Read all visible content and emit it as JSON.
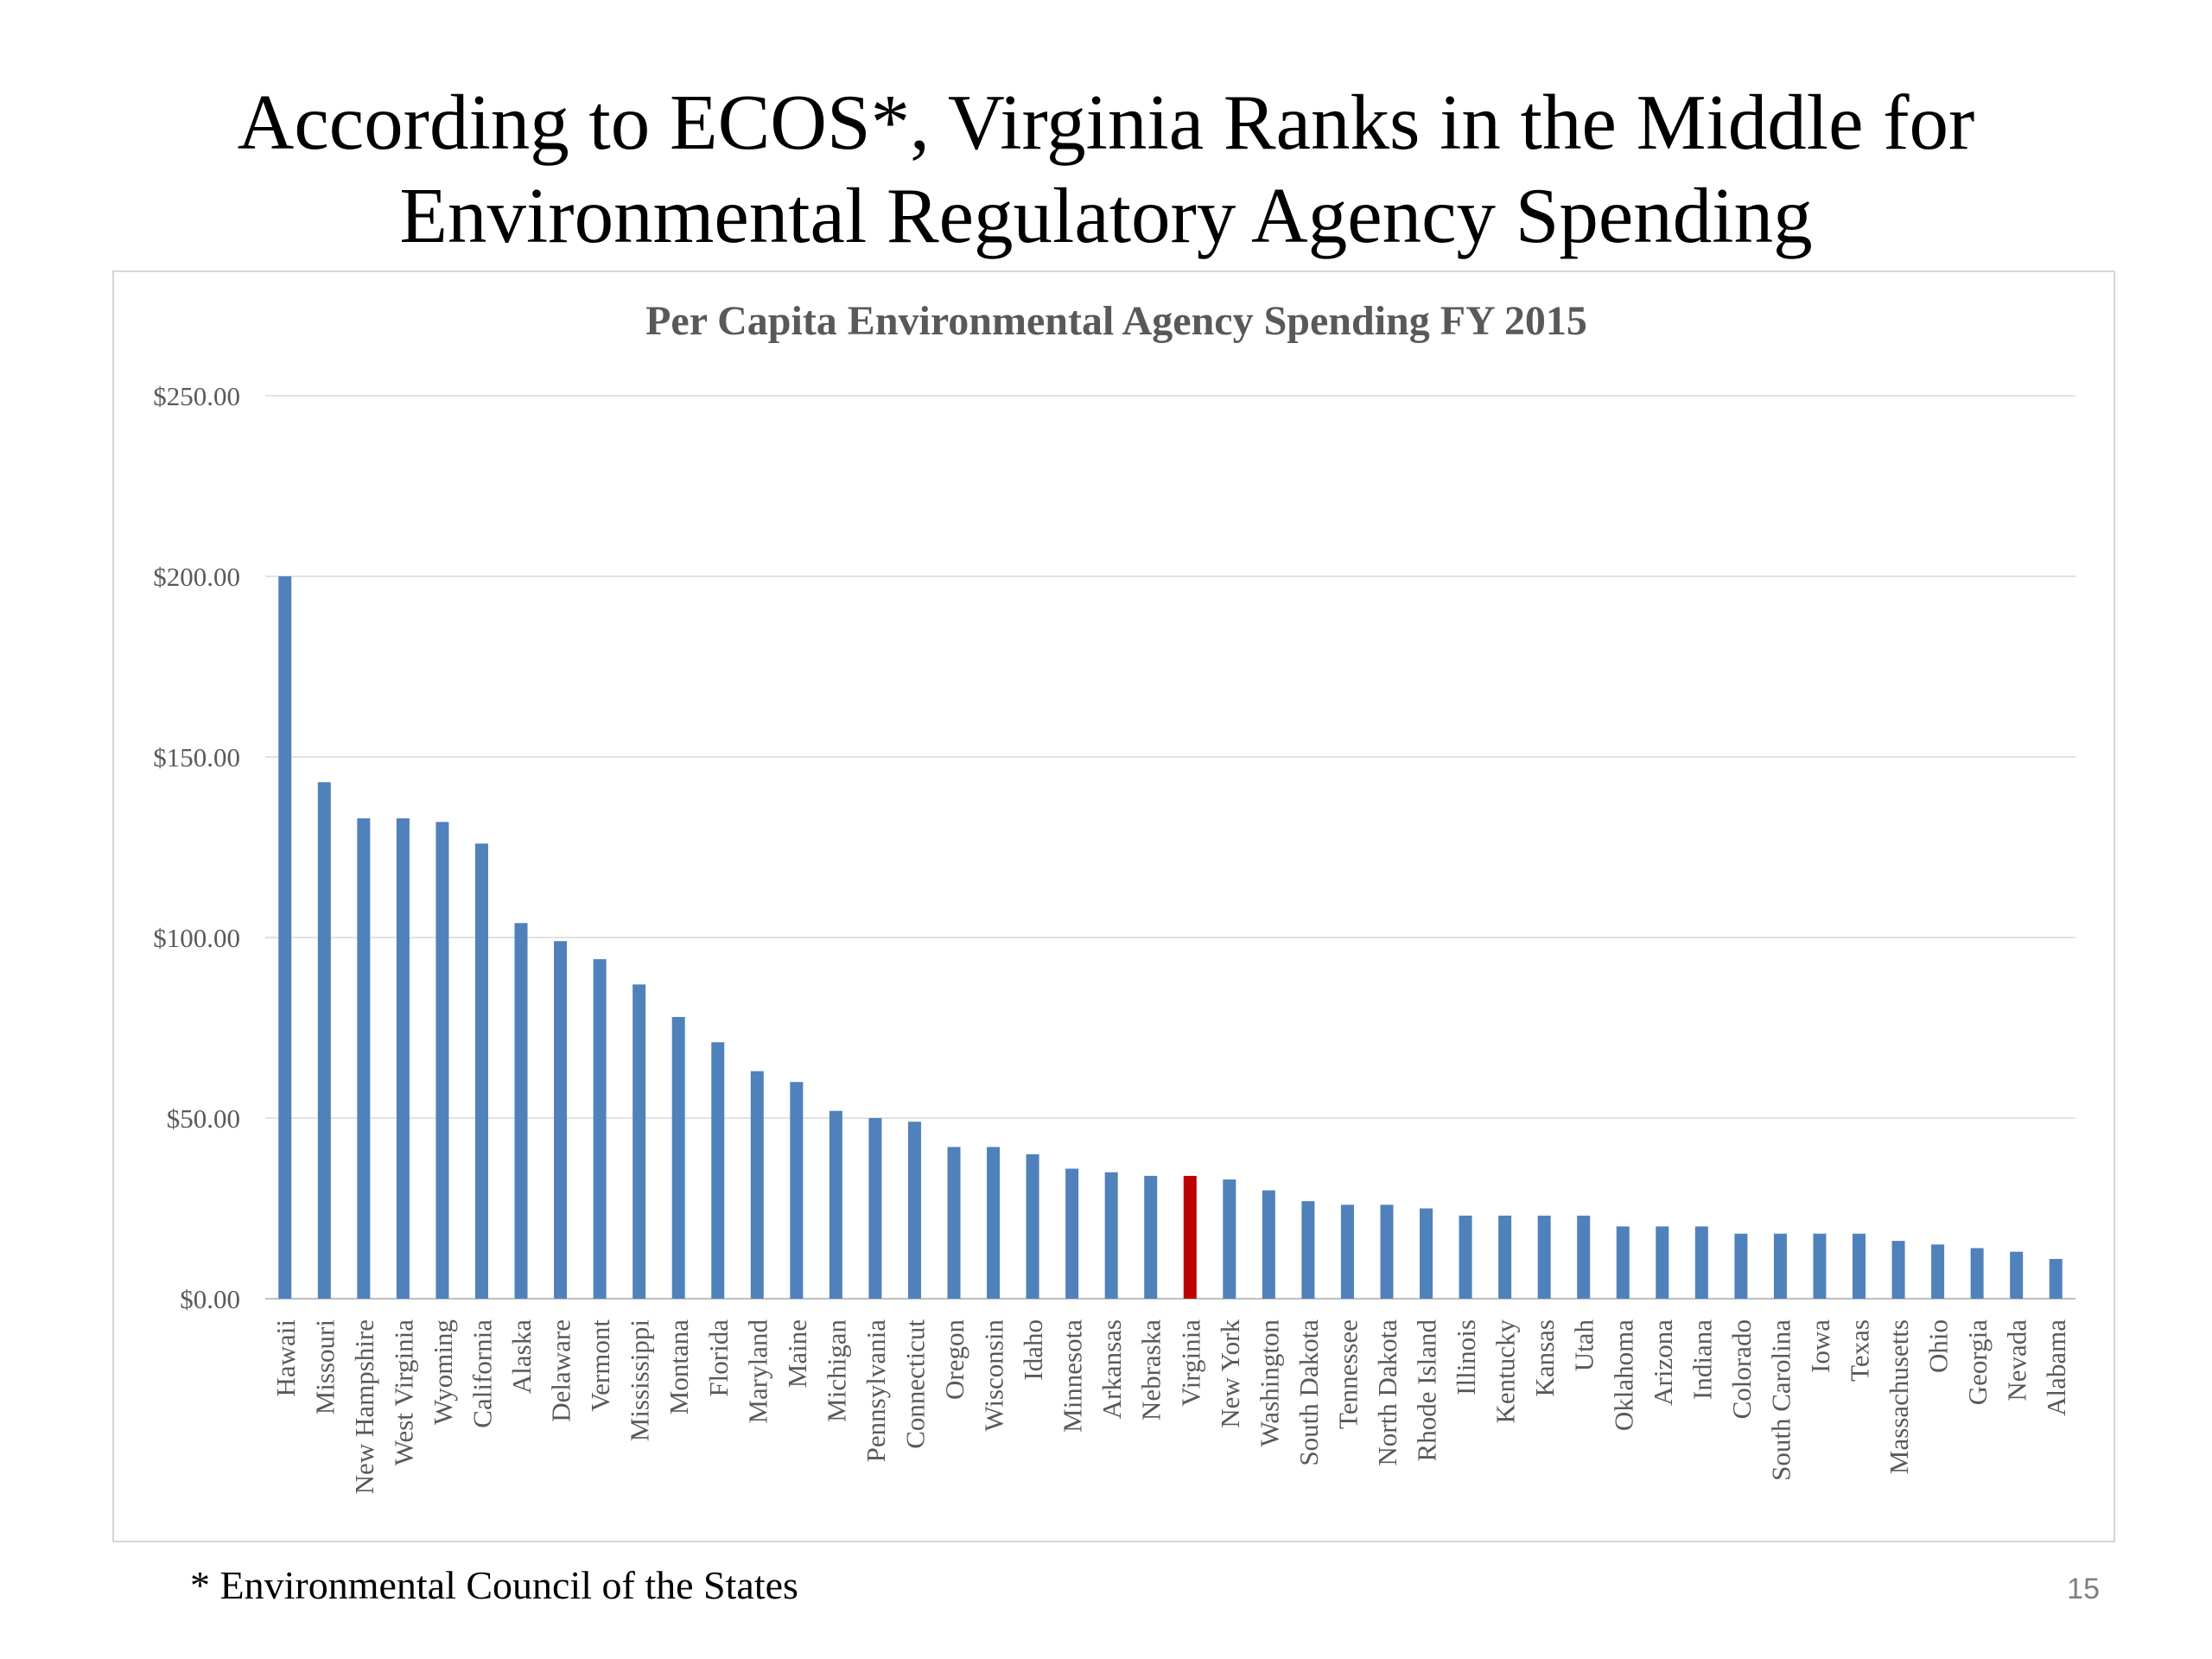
{
  "slide": {
    "title_line1": "According to ECOS*, Virginia Ranks in the Middle for",
    "title_line2": "Environmental Regulatory Agency Spending",
    "footnote": "* Environmental Council of the States",
    "page_number": "15"
  },
  "chart_data": {
    "type": "bar",
    "title": "Per Capita Environmental Agency Spending FY 2015",
    "xlabel": "",
    "ylabel": "",
    "ylim": [
      0,
      250
    ],
    "yticks": [
      "$0.00",
      "$50.00",
      "$100.00",
      "$150.00",
      "$200.00",
      "$250.00"
    ],
    "ytick_values": [
      0,
      50,
      100,
      150,
      200,
      250
    ],
    "grid": true,
    "legend": "none",
    "bar_color": "#4f81bd",
    "highlight_color": "#c00000",
    "highlight_category": "Virginia",
    "categories": [
      "Hawaii",
      "Missouri",
      "New Hampshire",
      "West Virginia",
      "Wyoming",
      "California",
      "Alaska",
      "Delaware",
      "Vermont",
      "Mississippi",
      "Montana",
      "Florida",
      "Maryland",
      "Maine",
      "Michigan",
      "Pennsylvania",
      "Connecticut",
      "Oregon",
      "Wisconsin",
      "Idaho",
      "Minnesota",
      "Arkansas",
      "Nebraska",
      "Virginia",
      "New York",
      "Washington",
      "South Dakota",
      "Tennessee",
      "North Dakota",
      "Rhode Island",
      "Illinois",
      "Kentucky",
      "Kansas",
      "Utah",
      "Oklahoma",
      "Arizona",
      "Indiana",
      "Colorado",
      "South Carolina",
      "Iowa",
      "Texas",
      "Massachusetts",
      "Ohio",
      "Georgia",
      "Nevada",
      "Alabama"
    ],
    "values": [
      200,
      143,
      133,
      133,
      132,
      126,
      104,
      99,
      94,
      87,
      78,
      71,
      63,
      60,
      52,
      50,
      49,
      42,
      42,
      40,
      36,
      35,
      34,
      34,
      33,
      30,
      27,
      26,
      26,
      25,
      23,
      23,
      23,
      23,
      20,
      20,
      20,
      18,
      18,
      18,
      18,
      16,
      15,
      14,
      13,
      11
    ]
  }
}
